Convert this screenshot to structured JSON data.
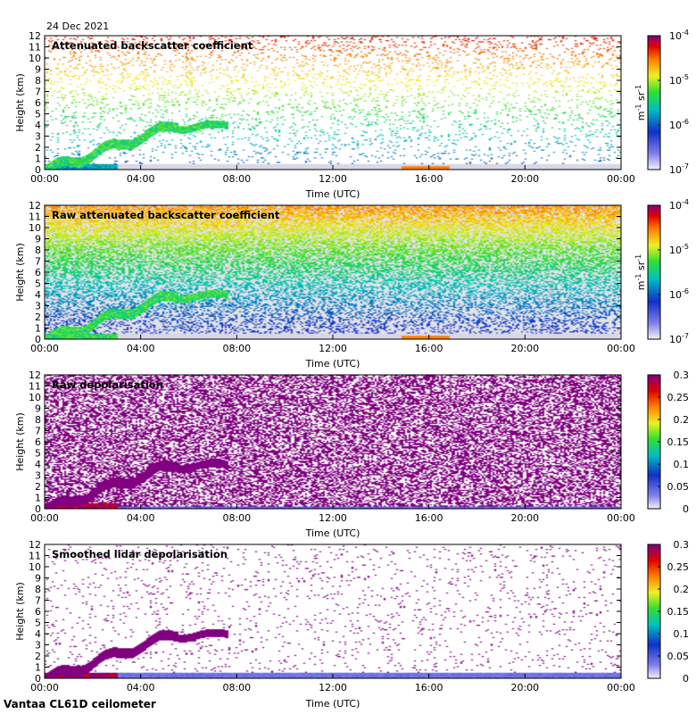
{
  "date": "24 Dec 2021",
  "footer": "Vantaa CL61D ceilometer",
  "chart_data": [
    {
      "type": "heatmap",
      "title": "Attenuated backscatter coefficient",
      "xlabel": "Time (UTC)",
      "ylabel": "Height (km)",
      "xticks": [
        "00:00",
        "04:00",
        "08:00",
        "12:00",
        "16:00",
        "20:00",
        "00:00"
      ],
      "yticks": [
        "0",
        "1",
        "2",
        "3",
        "4",
        "5",
        "6",
        "7",
        "8",
        "9",
        "10",
        "11",
        "12"
      ],
      "ylim": [
        0,
        12
      ],
      "xlim_hours": [
        0,
        24
      ],
      "colorbar": {
        "scale": "log",
        "ticks": [
          "10-7",
          "10-6",
          "10-5",
          "10-4"
        ],
        "unit": "m-1 sr-1"
      }
    },
    {
      "type": "heatmap",
      "title": "Raw attenuated backscatter coefficient",
      "xlabel": "Time (UTC)",
      "ylabel": "Height (km)",
      "xticks": [
        "00:00",
        "04:00",
        "08:00",
        "12:00",
        "16:00",
        "20:00",
        "00:00"
      ],
      "yticks": [
        "0",
        "1",
        "2",
        "3",
        "4",
        "5",
        "6",
        "7",
        "8",
        "9",
        "10",
        "11",
        "12"
      ],
      "ylim": [
        0,
        12
      ],
      "xlim_hours": [
        0,
        24
      ],
      "colorbar": {
        "scale": "log",
        "ticks": [
          "10-7",
          "10-6",
          "10-5",
          "10-4"
        ],
        "unit": "m-1 sr-1"
      }
    },
    {
      "type": "heatmap",
      "title": "Raw depolarisation",
      "xlabel": "Time (UTC)",
      "ylabel": "Height (km)",
      "xticks": [
        "00:00",
        "04:00",
        "08:00",
        "12:00",
        "16:00",
        "20:00",
        "00:00"
      ],
      "yticks": [
        "0",
        "1",
        "2",
        "3",
        "4",
        "5",
        "6",
        "7",
        "8",
        "9",
        "10",
        "11",
        "12"
      ],
      "ylim": [
        0,
        12
      ],
      "xlim_hours": [
        0,
        24
      ],
      "colorbar": {
        "scale": "linear",
        "ticks": [
          "0",
          "0.05",
          "0.1",
          "0.15",
          "0.2",
          "0.25",
          "0.3"
        ],
        "unit": ""
      }
    },
    {
      "type": "heatmap",
      "title": "Smoothed lidar depolarisation",
      "xlabel": "Time (UTC)",
      "ylabel": "Height (km)",
      "xticks": [
        "00:00",
        "04:00",
        "08:00",
        "12:00",
        "16:00",
        "20:00",
        "00:00"
      ],
      "yticks": [
        "0",
        "1",
        "2",
        "3",
        "4",
        "5",
        "6",
        "7",
        "8",
        "9",
        "10",
        "11",
        "12"
      ],
      "ylim": [
        0,
        12
      ],
      "xlim_hours": [
        0,
        24
      ],
      "colorbar": {
        "scale": "linear",
        "ticks": [
          "0",
          "0.05",
          "0.1",
          "0.15",
          "0.2",
          "0.25",
          "0.3"
        ],
        "unit": ""
      }
    }
  ]
}
